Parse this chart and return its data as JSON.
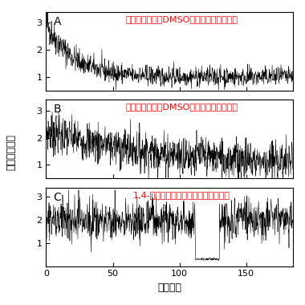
{
  "title_A": "空気で飽和したDMSO中での早い発光減少",
  "title_B": "窒素で飽和したDMSO中での発光の安定化",
  "title_C": "1,4-アミノブタンによる発光の安定化",
  "label_A": "A",
  "label_B": "B",
  "label_C": "C",
  "xlabel": "時間，秒",
  "ylabel": "相対発光強度",
  "title_color": "#ff0000",
  "line_color": "#000000",
  "bg_color": "#ffffff",
  "xlim": [
    0,
    185
  ],
  "ylim_A": [
    0.5,
    3.4
  ],
  "ylim_B": [
    0.5,
    3.4
  ],
  "ylim_C": [
    0.0,
    3.4
  ],
  "yticks": [
    1,
    2,
    3
  ],
  "xticks": [
    0,
    50,
    100,
    150
  ],
  "duration": 185,
  "dt": 0.2,
  "title_fontsize": 8.0,
  "label_fontsize": 10,
  "tick_fontsize": 8,
  "axis_fontsize": 9
}
